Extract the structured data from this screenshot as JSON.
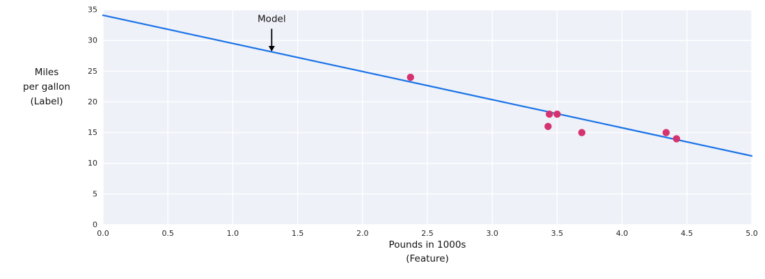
{
  "chart_data": {
    "type": "scatter",
    "title": "",
    "xlabel_lines": [
      "Pounds in 1000s",
      "(Feature)"
    ],
    "ylabel_lines": [
      "Miles",
      "per gallon",
      "(Label)"
    ],
    "xlim": [
      0,
      5
    ],
    "ylim": [
      0,
      35
    ],
    "xticks": [
      0,
      0.5,
      1,
      1.5,
      2,
      2.5,
      3,
      3.5,
      4,
      4.5,
      5
    ],
    "xtick_labels": [
      "0.0",
      "0.5",
      "1.0",
      "1.5",
      "2.0",
      "2.5",
      "3.0",
      "3.5",
      "4.0",
      "4.5",
      "5.0"
    ],
    "yticks": [
      0,
      5,
      10,
      15,
      20,
      25,
      30,
      35
    ],
    "ytick_labels": [
      "0",
      "5",
      "10",
      "15",
      "20",
      "25",
      "30",
      "35"
    ],
    "grid": true,
    "legend": "none",
    "points": [
      {
        "x": 2.37,
        "y": 24
      },
      {
        "x": 3.43,
        "y": 16
      },
      {
        "x": 3.44,
        "y": 18
      },
      {
        "x": 3.5,
        "y": 18
      },
      {
        "x": 3.69,
        "y": 15
      },
      {
        "x": 4.34,
        "y": 15
      },
      {
        "x": 4.42,
        "y": 14
      }
    ],
    "model_line": {
      "x": [
        0,
        5
      ],
      "y": [
        34.1,
        11.2
      ]
    },
    "annotation": {
      "label": "Model",
      "x": 1.3,
      "text_y": 33.0,
      "start_y": 31.9,
      "tip_y": 28.2
    },
    "colors": {
      "line": "#1a73e8",
      "points": "#d5336f",
      "plot_bg": "#eef1f8",
      "grid": "#ffffff",
      "text": "#262626"
    }
  }
}
